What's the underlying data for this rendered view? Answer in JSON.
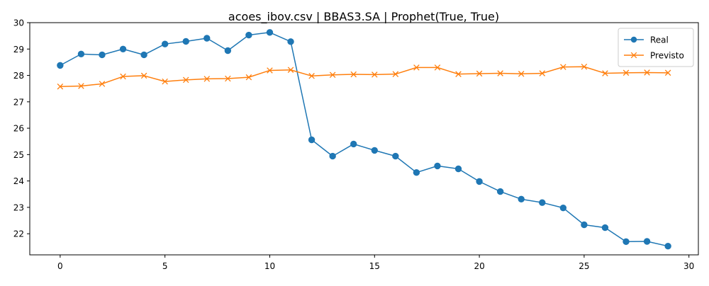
{
  "chart_data": {
    "type": "line",
    "title": "acoes_ibov.csv | BBAS3.SA | Prophet(True, True)",
    "xlabel": "",
    "ylabel": "",
    "xlim": [
      -1.45,
      30.45
    ],
    "ylim": [
      21.2,
      30.0
    ],
    "xticks": [
      0,
      5,
      10,
      15,
      20,
      25,
      30
    ],
    "yticks": [
      22,
      23,
      24,
      25,
      26,
      27,
      28,
      29,
      30
    ],
    "grid": false,
    "legend_position": "top-right",
    "x": [
      0,
      1,
      2,
      3,
      4,
      5,
      6,
      7,
      8,
      9,
      10,
      11,
      12,
      13,
      14,
      15,
      16,
      17,
      18,
      19,
      20,
      21,
      22,
      23,
      24,
      25,
      26,
      27,
      28,
      29
    ],
    "series": [
      {
        "name": "Real",
        "color": "#1f77b4",
        "marker": "circle",
        "values": [
          28.38,
          28.81,
          28.78,
          29.0,
          28.78,
          29.19,
          29.29,
          29.41,
          28.94,
          29.53,
          29.63,
          29.28,
          25.56,
          24.94,
          25.4,
          25.16,
          24.94,
          24.32,
          24.57,
          24.46,
          23.98,
          23.6,
          23.31,
          23.18,
          22.98,
          22.34,
          22.23,
          21.7,
          21.71,
          21.53
        ]
      },
      {
        "name": "Previsto",
        "color": "#ff7f0e",
        "marker": "x",
        "values": [
          27.58,
          27.6,
          27.68,
          27.96,
          27.99,
          27.77,
          27.83,
          27.87,
          27.88,
          27.93,
          28.19,
          28.21,
          27.98,
          28.02,
          28.04,
          28.03,
          28.05,
          28.3,
          28.3,
          28.05,
          28.07,
          28.08,
          28.06,
          28.08,
          28.32,
          28.33,
          28.08,
          28.1,
          28.11,
          28.1
        ]
      }
    ]
  }
}
